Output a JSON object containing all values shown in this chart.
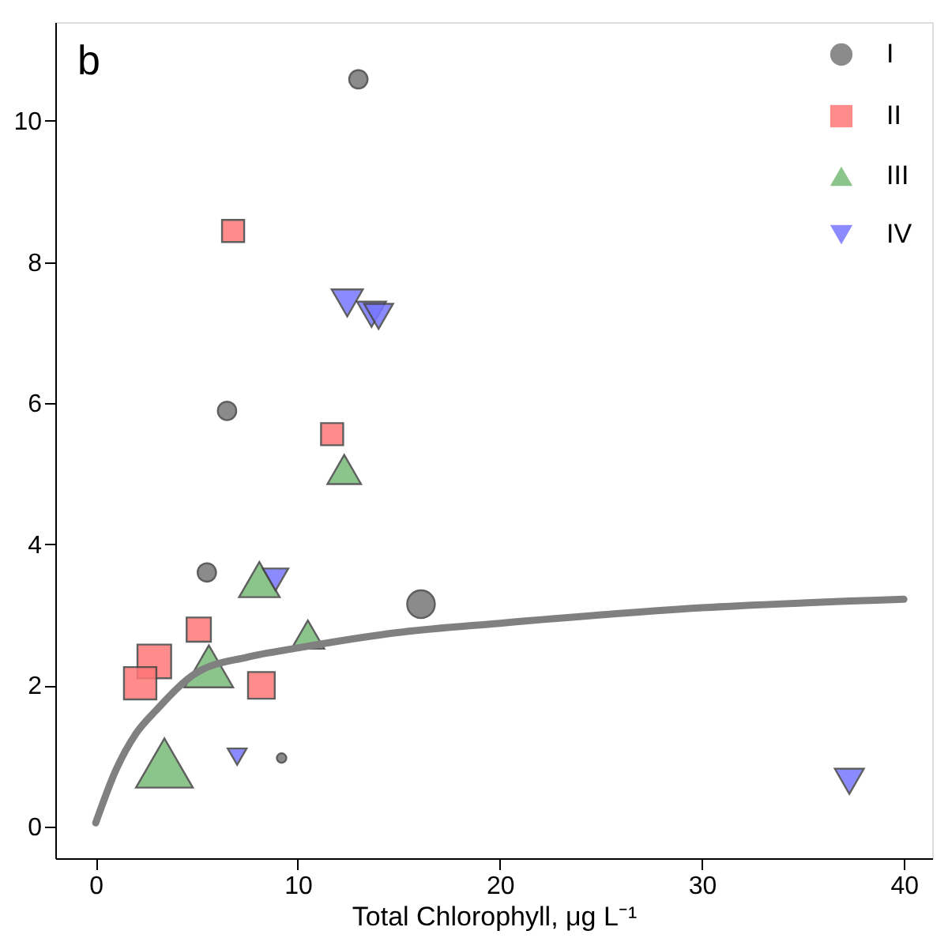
{
  "chart_data": {
    "type": "bubble",
    "xlabel": "Total Chlorophyll, μg L⁻¹",
    "annotations": [
      "b"
    ],
    "xlim": [
      -2,
      41.4
    ],
    "ylim": [
      -0.45,
      11.4
    ],
    "xticks": [
      0,
      10,
      20,
      30,
      40
    ],
    "yticks": [
      0,
      2,
      4,
      6,
      8,
      10
    ],
    "grid": false,
    "legend": "top right",
    "series": [
      {
        "name": "I",
        "color": "#777777",
        "marker": "circle",
        "x": [
          13.0,
          6.5,
          5.5,
          16.1,
          9.2
        ],
        "values": [
          10.59,
          5.89,
          3.6,
          3.15,
          0.97
        ],
        "sizes": [
          0.19,
          0.19,
          0.19,
          0.43,
          0.05
        ]
      },
      {
        "name": "II",
        "color": "#ff7777",
        "marker": "square",
        "x": [
          6.8,
          11.7,
          5.1,
          2.9,
          2.2,
          8.2
        ],
        "values": [
          8.44,
          5.56,
          2.79,
          2.34,
          2.03,
          2.0
        ],
        "sizes": [
          0.35,
          0.35,
          0.42,
          0.81,
          0.75,
          0.51
        ]
      },
      {
        "name": "III",
        "color": "#77bb77",
        "marker": "triangle",
        "x": [
          12.3,
          8.1,
          5.6,
          10.5,
          3.4
        ],
        "values": [
          5.06,
          3.5,
          2.27,
          2.72,
          0.9
        ],
        "sizes": [
          0.35,
          0.51,
          0.73,
          0.33,
          1
        ]
      },
      {
        "name": "IV",
        "color": "#7777ff",
        "marker": "triangle-down",
        "x": [
          12.45,
          13.65,
          14.0,
          8.9,
          7.0,
          37.3
        ],
        "values": [
          7.42,
          7.26,
          7.23,
          3.5,
          0.99,
          0.64
        ],
        "sizes": [
          0.3,
          0.26,
          0.26,
          0.2,
          0.11,
          0.26
        ]
      },
      {
        "type": "line",
        "color": "#808080",
        "x": [
          0,
          1,
          2,
          3,
          5,
          7.5,
          10,
          15,
          20,
          30,
          40
        ],
        "values": [
          0.05,
          0.8,
          1.32,
          1.65,
          2.18,
          2.4,
          2.53,
          2.75,
          2.88,
          3.1,
          3.22
        ]
      }
    ]
  }
}
